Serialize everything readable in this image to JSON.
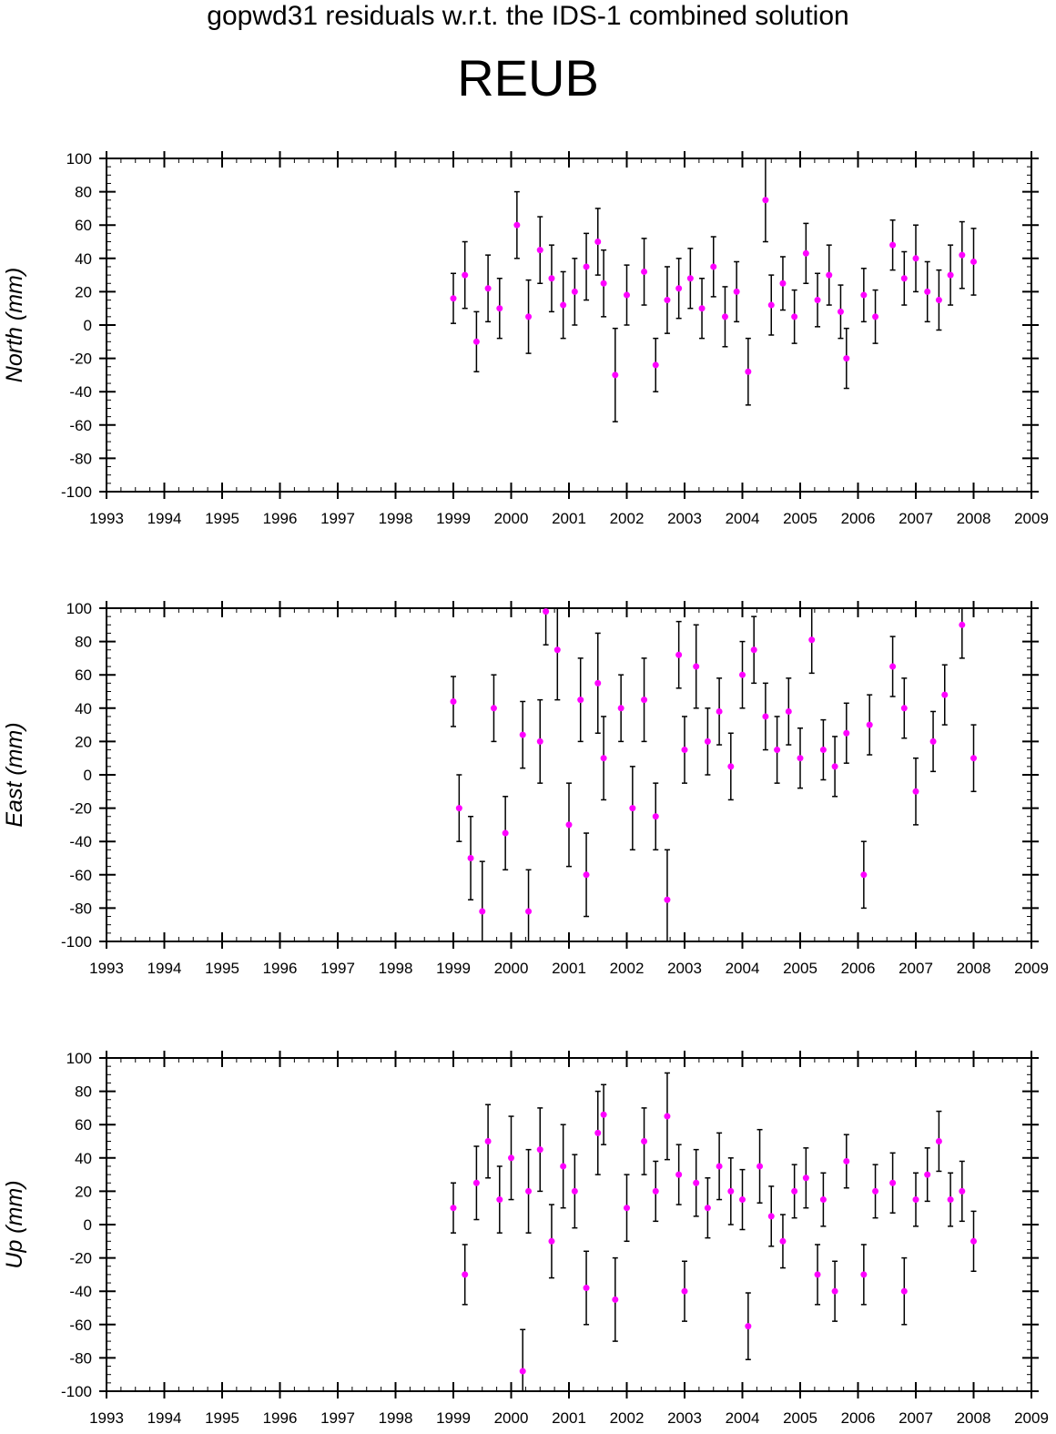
{
  "title": "gopwd31 residuals w.r.t. the IDS-1 combined solution",
  "station": "REUB",
  "colors": {
    "marker": "#ff00ff",
    "errorbar": "#000000",
    "axis": "#000000"
  },
  "chart_data": [
    {
      "type": "scatter",
      "ylabel": "North (mm)",
      "xlim": [
        1993,
        2009
      ],
      "ylim": [
        -100,
        100
      ],
      "x_ticks": [
        1993,
        1994,
        1995,
        1996,
        1997,
        1998,
        1999,
        2000,
        2001,
        2002,
        2003,
        2004,
        2005,
        2006,
        2007,
        2008,
        2009
      ],
      "y_ticks": [
        100,
        80,
        60,
        40,
        20,
        0,
        -20,
        -40,
        -60,
        -80,
        -100
      ],
      "grid": false,
      "legend": "none",
      "series": [
        {
          "x": [
            1999.0,
            1999.2,
            1999.4,
            1999.6,
            1999.8,
            2000.1,
            2000.3,
            2000.5,
            2000.7,
            2000.9,
            2001.1,
            2001.3,
            2001.5,
            2001.6,
            2001.8,
            2002.0,
            2002.3,
            2002.5,
            2002.7,
            2002.9,
            2003.1,
            2003.3,
            2003.5,
            2003.7,
            2003.9,
            2004.1,
            2004.4,
            2004.5,
            2004.7,
            2004.9,
            2005.1,
            2005.3,
            2005.5,
            2005.7,
            2005.8,
            2006.1,
            2006.3,
            2006.6,
            2006.8,
            2007.0,
            2007.2,
            2007.4,
            2007.6,
            2007.8,
            2008.0
          ],
          "y": [
            16,
            30,
            -10,
            22,
            10,
            60,
            5,
            45,
            28,
            12,
            20,
            35,
            50,
            25,
            -30,
            18,
            32,
            -24,
            15,
            22,
            28,
            10,
            35,
            5,
            20,
            -28,
            75,
            12,
            25,
            5,
            43,
            15,
            30,
            8,
            -20,
            18,
            5,
            48,
            28,
            40,
            20,
            15,
            30,
            42,
            38
          ],
          "err": [
            15,
            20,
            18,
            20,
            18,
            20,
            22,
            20,
            20,
            20,
            20,
            20,
            20,
            20,
            28,
            18,
            20,
            16,
            20,
            18,
            18,
            18,
            18,
            18,
            18,
            20,
            25,
            18,
            16,
            16,
            18,
            16,
            18,
            16,
            18,
            16,
            16,
            15,
            16,
            20,
            18,
            18,
            18,
            20,
            20
          ]
        }
      ]
    },
    {
      "type": "scatter",
      "ylabel": "East (mm)",
      "xlim": [
        1993,
        2009
      ],
      "ylim": [
        -100,
        100
      ],
      "x_ticks": [
        1993,
        1994,
        1995,
        1996,
        1997,
        1998,
        1999,
        2000,
        2001,
        2002,
        2003,
        2004,
        2005,
        2006,
        2007,
        2008,
        2009
      ],
      "y_ticks": [
        100,
        80,
        60,
        40,
        20,
        0,
        -20,
        -40,
        -60,
        -80,
        -100
      ],
      "grid": false,
      "legend": "none",
      "series": [
        {
          "x": [
            1999.0,
            1999.1,
            1999.3,
            1999.5,
            1999.7,
            1999.9,
            2000.2,
            2000.3,
            2000.5,
            2000.6,
            2000.8,
            2001.0,
            2001.2,
            2001.3,
            2001.5,
            2001.6,
            2001.9,
            2002.1,
            2002.3,
            2002.5,
            2002.7,
            2002.9,
            2003.0,
            2003.2,
            2003.4,
            2003.6,
            2003.8,
            2004.0,
            2004.2,
            2004.4,
            2004.6,
            2004.8,
            2005.0,
            2005.2,
            2005.4,
            2005.6,
            2005.8,
            2006.1,
            2006.2,
            2006.6,
            2006.8,
            2007.0,
            2007.3,
            2007.5,
            2007.8,
            2008.0
          ],
          "y": [
            44,
            -20,
            -50,
            -82,
            40,
            -35,
            24,
            -82,
            20,
            98,
            75,
            -30,
            45,
            -60,
            55,
            10,
            40,
            -20,
            45,
            -25,
            -75,
            72,
            15,
            65,
            20,
            38,
            5,
            60,
            75,
            35,
            15,
            38,
            10,
            81,
            15,
            5,
            25,
            -60,
            30,
            65,
            40,
            -10,
            20,
            48,
            90,
            10
          ],
          "err": [
            15,
            20,
            25,
            30,
            20,
            22,
            20,
            25,
            25,
            20,
            30,
            25,
            25,
            25,
            30,
            25,
            20,
            25,
            25,
            20,
            30,
            20,
            20,
            25,
            20,
            20,
            20,
            20,
            20,
            20,
            20,
            20,
            18,
            20,
            18,
            18,
            18,
            20,
            18,
            18,
            18,
            20,
            18,
            18,
            20,
            20
          ]
        }
      ]
    },
    {
      "type": "scatter",
      "ylabel": "Up (mm)",
      "xlim": [
        1993,
        2009
      ],
      "ylim": [
        -100,
        100
      ],
      "x_ticks": [
        1993,
        1994,
        1995,
        1996,
        1997,
        1998,
        1999,
        2000,
        2001,
        2002,
        2003,
        2004,
        2005,
        2006,
        2007,
        2008,
        2009
      ],
      "y_ticks": [
        100,
        80,
        60,
        40,
        20,
        0,
        -20,
        -40,
        -60,
        -80,
        -100
      ],
      "grid": false,
      "legend": "none",
      "series": [
        {
          "x": [
            1999.0,
            1999.2,
            1999.4,
            1999.6,
            1999.8,
            2000.0,
            2000.2,
            2000.3,
            2000.5,
            2000.7,
            2000.9,
            2001.1,
            2001.3,
            2001.5,
            2001.6,
            2001.8,
            2002.0,
            2002.3,
            2002.5,
            2002.7,
            2002.9,
            2003.0,
            2003.2,
            2003.4,
            2003.6,
            2003.8,
            2004.0,
            2004.1,
            2004.3,
            2004.5,
            2004.7,
            2004.9,
            2005.1,
            2005.3,
            2005.4,
            2005.6,
            2005.8,
            2006.1,
            2006.3,
            2006.6,
            2006.8,
            2007.0,
            2007.2,
            2007.4,
            2007.6,
            2007.8,
            2008.0
          ],
          "y": [
            10,
            -30,
            25,
            50,
            15,
            40,
            -88,
            20,
            45,
            -10,
            35,
            20,
            -38,
            55,
            66,
            -45,
            10,
            50,
            20,
            65,
            30,
            -40,
            25,
            10,
            35,
            20,
            15,
            -61,
            35,
            5,
            -10,
            20,
            28,
            -30,
            15,
            -40,
            38,
            -30,
            20,
            25,
            -40,
            15,
            30,
            50,
            15,
            20,
            -10
          ],
          "err": [
            15,
            18,
            22,
            22,
            20,
            25,
            25,
            25,
            25,
            22,
            25,
            22,
            22,
            25,
            18,
            25,
            20,
            20,
            18,
            26,
            18,
            18,
            20,
            18,
            20,
            20,
            18,
            20,
            22,
            18,
            16,
            16,
            18,
            18,
            16,
            18,
            16,
            18,
            16,
            18,
            20,
            16,
            16,
            18,
            16,
            18,
            18
          ]
        }
      ]
    }
  ]
}
